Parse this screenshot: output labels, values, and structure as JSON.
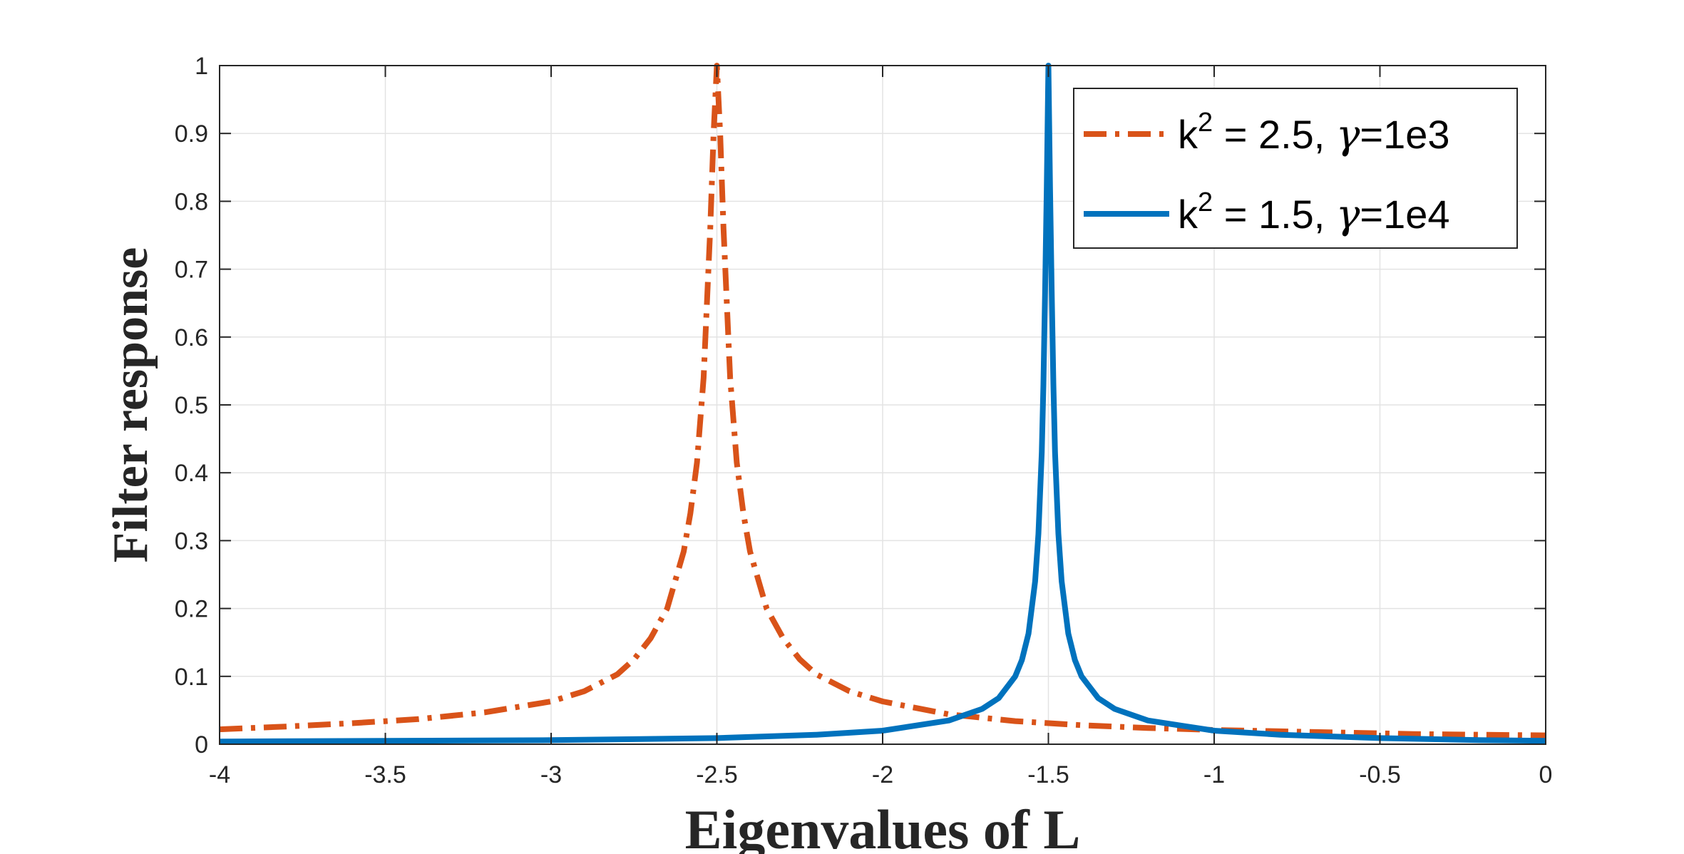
{
  "chart_data": {
    "type": "line",
    "xlabel": "Eigenvalues of L",
    "ylabel": "Filter response",
    "xlim": [
      -4,
      0
    ],
    "ylim": [
      0,
      1
    ],
    "grid": true,
    "legend_position": "top-right",
    "x_ticks": [
      -4,
      -3.5,
      -3,
      -2.5,
      -2,
      -1.5,
      -1,
      -0.5,
      0
    ],
    "x_tick_labels": [
      "-4",
      "-3.5",
      "-3",
      "-2.5",
      "-2",
      "-1.5",
      "-1",
      "-0.5",
      "0"
    ],
    "y_ticks": [
      0,
      0.1,
      0.2,
      0.3,
      0.4,
      0.5,
      0.6,
      0.7,
      0.8,
      0.9,
      1
    ],
    "y_tick_labels": [
      "0",
      "0.1",
      "0.2",
      "0.3",
      "0.4",
      "0.5",
      "0.6",
      "0.7",
      "0.8",
      "0.9",
      "1"
    ],
    "series": [
      {
        "name": "k2 = 2.5, γ=1e3",
        "legend": {
          "k": "k",
          "sup": "2",
          "mid": " = 2.5, ",
          "greek": "γ",
          "rest": "=1e3"
        },
        "color": "#D95319",
        "style": "dashdot",
        "x": [
          -4,
          -3.8,
          -3.6,
          -3.4,
          -3.2,
          -3.0,
          -2.9,
          -2.8,
          -2.75,
          -2.7,
          -2.65,
          -2.6,
          -2.58,
          -2.56,
          -2.54,
          -2.52,
          -2.51,
          -2.5,
          -2.49,
          -2.48,
          -2.46,
          -2.44,
          -2.42,
          -2.4,
          -2.35,
          -2.3,
          -2.25,
          -2.2,
          -2.1,
          -2.0,
          -1.8,
          -1.6,
          -1.4,
          -1.2,
          -1.0,
          -0.8,
          -0.6,
          -0.4,
          -0.2,
          0
        ],
        "y": [
          0.022,
          0.026,
          0.031,
          0.037,
          0.047,
          0.063,
          0.078,
          0.103,
          0.125,
          0.156,
          0.2,
          0.284,
          0.34,
          0.415,
          0.54,
          0.76,
          0.9,
          1.0,
          0.9,
          0.76,
          0.54,
          0.415,
          0.34,
          0.284,
          0.2,
          0.156,
          0.125,
          0.103,
          0.078,
          0.063,
          0.044,
          0.034,
          0.028,
          0.024,
          0.021,
          0.019,
          0.017,
          0.015,
          0.014,
          0.013
        ]
      },
      {
        "name": "k2 = 1.5, γ=1e4",
        "legend": {
          "k": "k",
          "sup": "2",
          "mid": " = 1.5, ",
          "greek": "γ",
          "rest": "=1e4"
        },
        "color": "#0072BD",
        "style": "solid",
        "x": [
          -4,
          -3.5,
          -3.0,
          -2.5,
          -2.2,
          -2.0,
          -1.8,
          -1.7,
          -1.65,
          -1.6,
          -1.58,
          -1.56,
          -1.54,
          -1.53,
          -1.52,
          -1.515,
          -1.51,
          -1.505,
          -1.5,
          -1.495,
          -1.49,
          -1.485,
          -1.48,
          -1.47,
          -1.46,
          -1.44,
          -1.42,
          -1.4,
          -1.35,
          -1.3,
          -1.2,
          -1.0,
          -0.8,
          -0.5,
          -0.2,
          0
        ],
        "y": [
          0.004,
          0.005,
          0.006,
          0.009,
          0.014,
          0.02,
          0.035,
          0.052,
          0.068,
          0.1,
          0.124,
          0.163,
          0.24,
          0.31,
          0.43,
          0.53,
          0.67,
          0.82,
          1.0,
          0.82,
          0.67,
          0.53,
          0.43,
          0.31,
          0.24,
          0.163,
          0.124,
          0.1,
          0.068,
          0.052,
          0.035,
          0.02,
          0.014,
          0.009,
          0.006,
          0.005
        ]
      }
    ]
  }
}
